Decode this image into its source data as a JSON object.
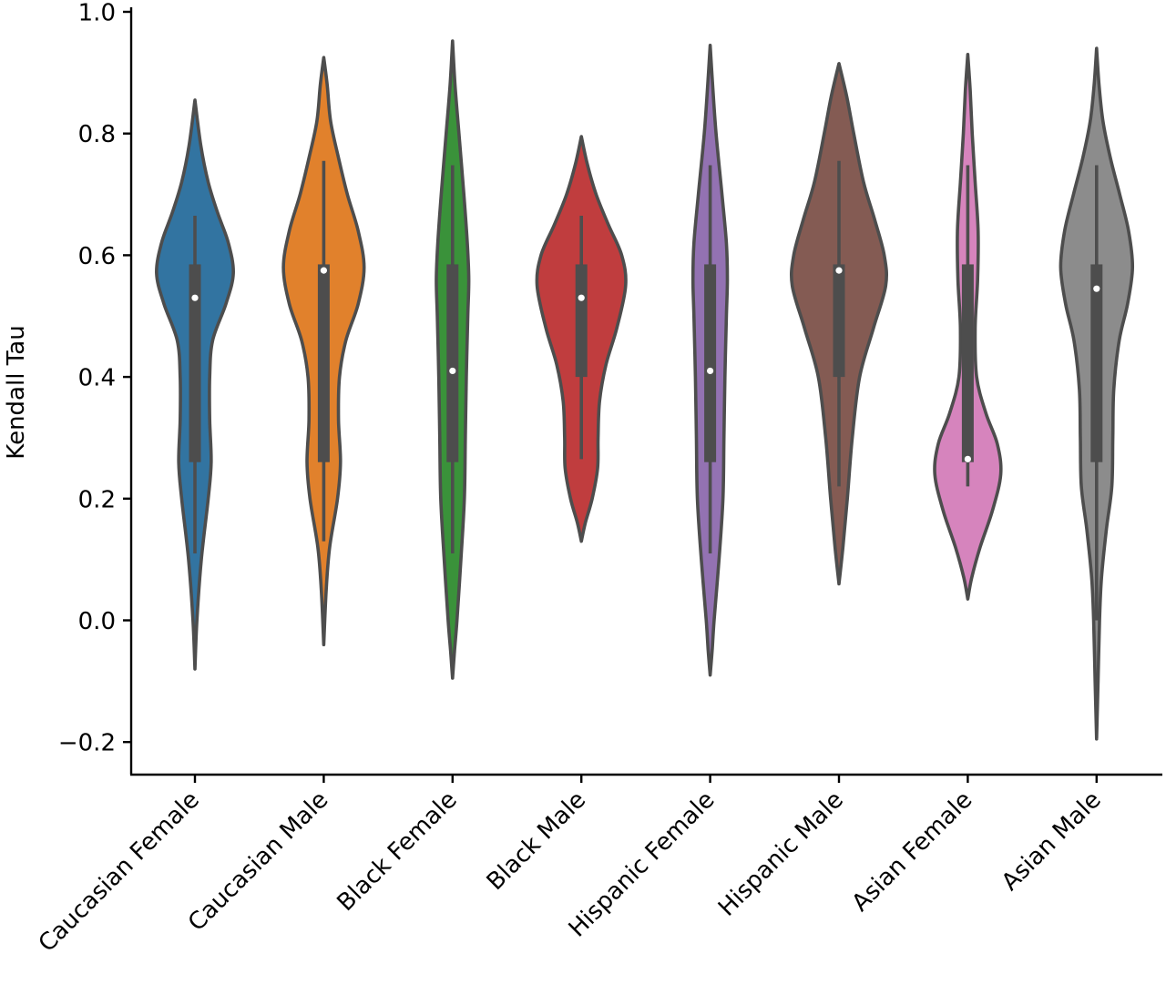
{
  "chart_data": {
    "type": "violin",
    "title": "",
    "xlabel": "",
    "ylabel": "Kendall Tau",
    "ylim": [
      -0.25,
      1.0
    ],
    "yticks": [
      -0.2,
      0.0,
      0.2,
      0.4,
      0.6,
      0.8,
      1.0
    ],
    "ytick_labels": [
      "−0.2",
      "0.0",
      "0.2",
      "0.4",
      "0.6",
      "0.8",
      "1.0"
    ],
    "grid": false,
    "legend": "none",
    "categories": [
      "Caucasian Female",
      "Caucasian Male",
      "Black Female",
      "Black Male",
      "Hispanic Female",
      "Hispanic Male",
      "Asian Female",
      "Asian Male"
    ],
    "series": [
      {
        "category": "Caucasian Female",
        "color": "#3274a1",
        "min": 0.11,
        "q1": 0.26,
        "median": 0.53,
        "q3": 0.585,
        "max": 0.665,
        "extent": [
          -0.08,
          0.855
        ],
        "density": [
          [
            -0.08,
            0
          ],
          [
            0.0,
            0.04
          ],
          [
            0.1,
            0.13
          ],
          [
            0.2,
            0.27
          ],
          [
            0.26,
            0.33
          ],
          [
            0.33,
            0.3
          ],
          [
            0.4,
            0.3
          ],
          [
            0.46,
            0.36
          ],
          [
            0.52,
            0.63
          ],
          [
            0.57,
            0.78
          ],
          [
            0.62,
            0.68
          ],
          [
            0.67,
            0.46
          ],
          [
            0.72,
            0.27
          ],
          [
            0.78,
            0.12
          ],
          [
            0.855,
            0
          ]
        ]
      },
      {
        "category": "Caucasian Male",
        "color": "#e1812c",
        "min": 0.13,
        "q1": 0.26,
        "median": 0.575,
        "q3": 0.585,
        "max": 0.755,
        "extent": [
          -0.04,
          0.925
        ],
        "density": [
          [
            -0.04,
            0
          ],
          [
            0.05,
            0.05
          ],
          [
            0.12,
            0.12
          ],
          [
            0.2,
            0.28
          ],
          [
            0.26,
            0.34
          ],
          [
            0.33,
            0.3
          ],
          [
            0.4,
            0.32
          ],
          [
            0.46,
            0.45
          ],
          [
            0.52,
            0.7
          ],
          [
            0.58,
            0.82
          ],
          [
            0.64,
            0.7
          ],
          [
            0.7,
            0.48
          ],
          [
            0.76,
            0.3
          ],
          [
            0.82,
            0.14
          ],
          [
            0.88,
            0.07
          ],
          [
            0.925,
            0
          ]
        ]
      },
      {
        "category": "Black Female",
        "color": "#3a923a",
        "min": 0.11,
        "q1": 0.26,
        "median": 0.41,
        "q3": 0.585,
        "max": 0.748,
        "extent": [
          -0.095,
          0.952
        ],
        "density": [
          [
            -0.095,
            0
          ],
          [
            -0.05,
            0.04
          ],
          [
            0.0,
            0.09
          ],
          [
            0.1,
            0.17
          ],
          [
            0.2,
            0.24
          ],
          [
            0.3,
            0.26
          ],
          [
            0.4,
            0.28
          ],
          [
            0.5,
            0.31
          ],
          [
            0.56,
            0.33
          ],
          [
            0.62,
            0.3
          ],
          [
            0.7,
            0.23
          ],
          [
            0.8,
            0.13
          ],
          [
            0.88,
            0.05
          ],
          [
            0.952,
            0
          ]
        ]
      },
      {
        "category": "Black Male",
        "color": "#c03d3e",
        "min": 0.265,
        "q1": 0.4,
        "median": 0.53,
        "q3": 0.585,
        "max": 0.665,
        "extent": [
          0.13,
          0.795
        ],
        "density": [
          [
            0.13,
            0
          ],
          [
            0.16,
            0.08
          ],
          [
            0.2,
            0.22
          ],
          [
            0.25,
            0.33
          ],
          [
            0.3,
            0.34
          ],
          [
            0.36,
            0.37
          ],
          [
            0.42,
            0.5
          ],
          [
            0.48,
            0.72
          ],
          [
            0.55,
            0.9
          ],
          [
            0.6,
            0.82
          ],
          [
            0.65,
            0.55
          ],
          [
            0.7,
            0.3
          ],
          [
            0.75,
            0.12
          ],
          [
            0.795,
            0
          ]
        ]
      },
      {
        "category": "Hispanic Female",
        "color": "#9372b2",
        "min": 0.11,
        "q1": 0.26,
        "median": 0.41,
        "q3": 0.585,
        "max": 0.748,
        "extent": [
          -0.09,
          0.945
        ],
        "density": [
          [
            -0.09,
            0
          ],
          [
            -0.05,
            0.04
          ],
          [
            0.0,
            0.08
          ],
          [
            0.1,
            0.18
          ],
          [
            0.2,
            0.26
          ],
          [
            0.3,
            0.28
          ],
          [
            0.4,
            0.3
          ],
          [
            0.5,
            0.33
          ],
          [
            0.56,
            0.35
          ],
          [
            0.62,
            0.33
          ],
          [
            0.7,
            0.24
          ],
          [
            0.8,
            0.12
          ],
          [
            0.88,
            0.05
          ],
          [
            0.945,
            0
          ]
        ]
      },
      {
        "category": "Hispanic Male",
        "color": "#845b53",
        "min": 0.22,
        "q1": 0.4,
        "median": 0.575,
        "q3": 0.585,
        "max": 0.755,
        "extent": [
          0.06,
          0.915
        ],
        "density": [
          [
            0.06,
            0
          ],
          [
            0.12,
            0.08
          ],
          [
            0.2,
            0.17
          ],
          [
            0.3,
            0.27
          ],
          [
            0.4,
            0.42
          ],
          [
            0.48,
            0.7
          ],
          [
            0.55,
            0.95
          ],
          [
            0.6,
            0.92
          ],
          [
            0.66,
            0.72
          ],
          [
            0.72,
            0.5
          ],
          [
            0.8,
            0.3
          ],
          [
            0.86,
            0.16
          ],
          [
            0.915,
            0
          ]
        ]
      },
      {
        "category": "Asian Female",
        "color": "#d684bd",
        "min": 0.22,
        "q1": 0.26,
        "median": 0.265,
        "q3": 0.585,
        "max": 0.748,
        "extent": [
          0.035,
          0.93
        ],
        "density": [
          [
            0.035,
            0
          ],
          [
            0.07,
            0.08
          ],
          [
            0.12,
            0.25
          ],
          [
            0.18,
            0.5
          ],
          [
            0.24,
            0.67
          ],
          [
            0.29,
            0.6
          ],
          [
            0.34,
            0.37
          ],
          [
            0.4,
            0.18
          ],
          [
            0.48,
            0.15
          ],
          [
            0.56,
            0.2
          ],
          [
            0.64,
            0.21
          ],
          [
            0.72,
            0.15
          ],
          [
            0.8,
            0.09
          ],
          [
            0.87,
            0.05
          ],
          [
            0.93,
            0
          ]
        ]
      },
      {
        "category": "Asian Male",
        "color": "#8c8c8c",
        "min": 0.0,
        "q1": 0.26,
        "median": 0.545,
        "q3": 0.585,
        "max": 0.748,
        "extent": [
          -0.195,
          0.94
        ],
        "density": [
          [
            -0.195,
            0
          ],
          [
            -0.1,
            0.03
          ],
          [
            0.0,
            0.06
          ],
          [
            0.07,
            0.1
          ],
          [
            0.15,
            0.2
          ],
          [
            0.22,
            0.31
          ],
          [
            0.3,
            0.33
          ],
          [
            0.38,
            0.35
          ],
          [
            0.46,
            0.46
          ],
          [
            0.52,
            0.63
          ],
          [
            0.58,
            0.73
          ],
          [
            0.64,
            0.65
          ],
          [
            0.7,
            0.47
          ],
          [
            0.76,
            0.28
          ],
          [
            0.82,
            0.13
          ],
          [
            0.88,
            0.05
          ],
          [
            0.94,
            0
          ]
        ]
      }
    ]
  }
}
